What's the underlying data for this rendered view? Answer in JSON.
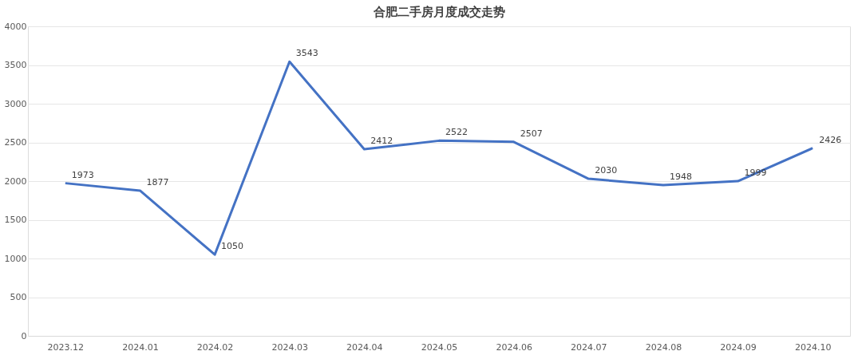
{
  "chart_data": {
    "type": "line",
    "title": "合肥二手房月度成交走势",
    "categories": [
      "2023.12",
      "2024.01",
      "2024.02",
      "2024.03",
      "2024.04",
      "2024.05",
      "2024.06",
      "2024.07",
      "2024.08",
      "2024.09",
      "2024.10"
    ],
    "series": [
      {
        "color": "#4472c4",
        "values": [
          1973,
          1877,
          1050,
          3543,
          2412,
          2522,
          2507,
          2030,
          1948,
          1999,
          2426
        ]
      }
    ],
    "ylim": [
      0,
      4000
    ],
    "yticks": [
      0,
      500,
      1000,
      1500,
      2000,
      2500,
      3000,
      3500,
      4000
    ],
    "grid": "y",
    "data_labels": true,
    "marker": "none",
    "line_style": "solid"
  }
}
